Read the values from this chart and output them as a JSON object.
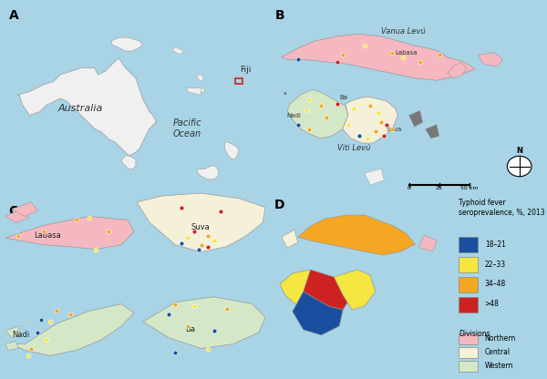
{
  "background_color": "#a8d4e6",
  "ocean_color": "#a8d4e6",
  "land_color": "#f0f0f0",
  "panel_label_fontsize": 10,
  "legend_title": "Typhoid fever\nseroprevalence, %, 2013",
  "sero_categories": [
    "18–21",
    "22–33",
    "34–48",
    ">48"
  ],
  "sero_colors": [
    "#1a4fa0",
    "#f5e642",
    "#f5a623",
    "#cc2222"
  ],
  "division_labels": [
    "Northern",
    "Central",
    "Western"
  ],
  "division_colors": [
    "#f5b8c0",
    "#f5f0d8",
    "#d4e8c8"
  ],
  "northern_color": "#f5b8c0",
  "central_color": "#f5f0d8",
  "western_color": "#d4e8c8",
  "dark_island_color": "#888888",
  "border_color": "#999999",
  "text_color": "#333333"
}
